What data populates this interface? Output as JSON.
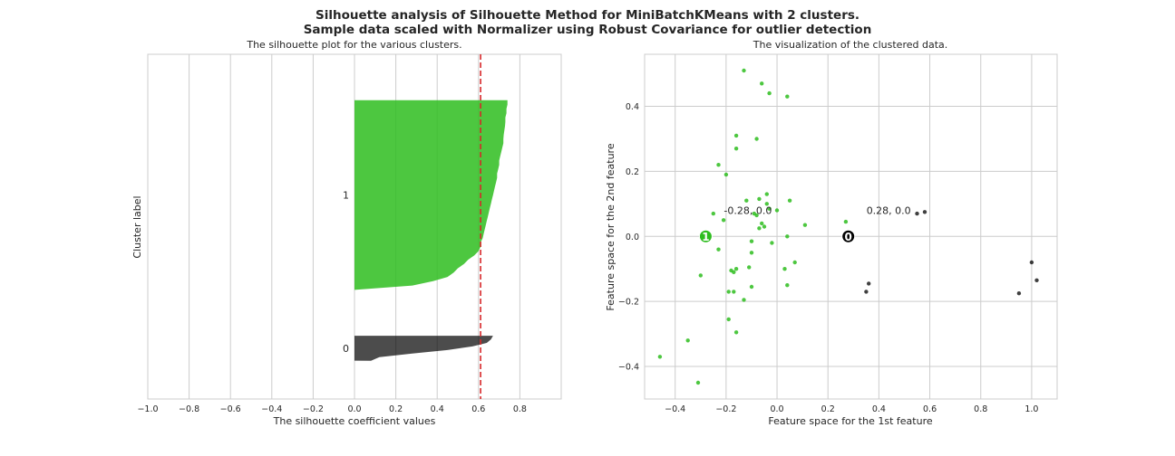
{
  "figure": {
    "title_line1": "Silhouette analysis of Silhouette Method for MiniBatchKMeans with 2 clusters.",
    "title_line2": "Sample data scaled with Normalizer using Robust Covariance for outlier detection"
  },
  "chart_data": [
    {
      "type": "area",
      "title": "The silhouette plot for the various clusters.",
      "xlabel": "The silhouette coefficient values",
      "ylabel": "Cluster label",
      "xlim": [
        -1.0,
        1.0
      ],
      "xticks": [
        -1.0,
        -0.8,
        -0.6,
        -0.4,
        -0.2,
        0.0,
        0.2,
        0.4,
        0.6,
        0.8
      ],
      "xtick_labels": [
        "−1.0",
        "−0.8",
        "−0.6",
        "−0.4",
        "−0.2",
        "0.0",
        "0.2",
        "0.4",
        "0.6",
        "0.8"
      ],
      "grid": true,
      "average_silhouette": 0.61,
      "clusters": [
        {
          "label": "0",
          "color": "#000000",
          "values": [
            0.67,
            0.66,
            0.64,
            0.57,
            0.45,
            0.28,
            0.12,
            0.08
          ]
        },
        {
          "label": "1",
          "color": "#2ebd1f",
          "values": [
            0.74,
            0.74,
            0.735,
            0.735,
            0.73,
            0.73,
            0.728,
            0.725,
            0.722,
            0.72,
            0.72,
            0.715,
            0.71,
            0.705,
            0.7,
            0.7,
            0.695,
            0.69,
            0.69,
            0.685,
            0.68,
            0.675,
            0.67,
            0.665,
            0.66,
            0.655,
            0.65,
            0.645,
            0.64,
            0.635,
            0.63,
            0.625,
            0.62,
            0.61,
            0.61,
            0.6,
            0.58,
            0.55,
            0.53,
            0.5,
            0.48,
            0.45,
            0.38,
            0.28,
            0.0
          ]
        }
      ]
    },
    {
      "type": "scatter",
      "title": "The visualization of the clustered data.",
      "xlabel": "Feature space for the 1st feature",
      "ylabel": "Feature space for the 2nd feature",
      "xlim": [
        -0.52,
        1.1
      ],
      "ylim": [
        -0.5,
        0.56
      ],
      "xticks": [
        -0.4,
        -0.2,
        0.0,
        0.2,
        0.4,
        0.6,
        0.8,
        1.0
      ],
      "xtick_labels": [
        "−0.4",
        "−0.2",
        "0.0",
        "0.2",
        "0.4",
        "0.6",
        "0.8",
        "1.0"
      ],
      "yticks": [
        -0.4,
        -0.2,
        0.0,
        0.2,
        0.4
      ],
      "ytick_labels": [
        "−0.4",
        "−0.2",
        "0.0",
        "0.2",
        "0.4"
      ],
      "grid": true,
      "series": [
        {
          "cluster": "0",
          "color": "#000000",
          "x": [
            0.55,
            0.58,
            0.36,
            0.35,
            1.0,
            1.02,
            0.95
          ],
          "y": [
            0.07,
            0.075,
            -0.145,
            -0.17,
            -0.08,
            -0.135,
            -0.175
          ]
        },
        {
          "cluster": "1",
          "color": "#2ebd1f",
          "x": [
            -0.13,
            -0.06,
            -0.03,
            0.04,
            -0.16,
            -0.08,
            -0.16,
            -0.23,
            -0.2,
            -0.04,
            -0.12,
            -0.07,
            -0.04,
            0.05,
            -0.25,
            -0.21,
            -0.03,
            0.0,
            0.11,
            -0.06,
            -0.07,
            0.04,
            -0.1,
            -0.23,
            0.07,
            -0.16,
            -0.11,
            0.03,
            0.27,
            -0.18,
            -0.19,
            -0.13,
            0.04,
            -0.17,
            -0.17,
            -0.1,
            -0.3,
            -0.35,
            -0.46,
            -0.31,
            -0.16,
            -0.1,
            -0.02,
            -0.05,
            -0.08,
            -0.09,
            -0.19
          ],
          "y": [
            0.51,
            0.47,
            0.44,
            0.43,
            0.31,
            0.3,
            0.27,
            0.22,
            0.19,
            0.13,
            0.11,
            0.115,
            0.1,
            0.11,
            0.07,
            0.05,
            0.085,
            0.08,
            0.035,
            0.04,
            0.025,
            0.0,
            -0.015,
            -0.04,
            -0.08,
            -0.1,
            -0.095,
            -0.1,
            0.045,
            -0.105,
            -0.17,
            -0.195,
            -0.15,
            -0.11,
            -0.17,
            -0.155,
            -0.12,
            -0.32,
            -0.37,
            -0.45,
            -0.295,
            -0.05,
            -0.02,
            0.03,
            0.065,
            0.07,
            -0.255
          ]
        }
      ],
      "centers": [
        {
          "label": "0",
          "x": 0.28,
          "y": 0.0,
          "annotation": "0.28, 0.0",
          "color": "#000000"
        },
        {
          "label": "1",
          "x": -0.28,
          "y": 0.0,
          "annotation": "-0.28, 0.0",
          "color": "#2ebd1f"
        }
      ]
    }
  ]
}
